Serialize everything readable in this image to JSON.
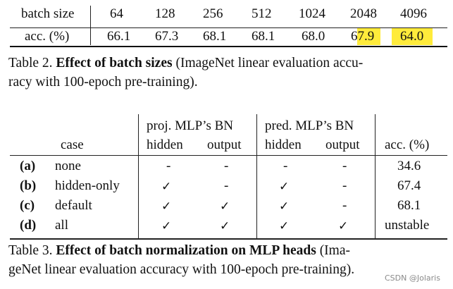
{
  "table2": {
    "row1": {
      "label": "batch size",
      "cells": [
        "64",
        "128",
        "256",
        "512",
        "1024",
        "2048",
        "4096"
      ]
    },
    "row2": {
      "label": "acc. (%)",
      "cells": [
        "66.1",
        "67.3",
        "68.1",
        "68.1",
        "68.0",
        "67.9",
        "64.0"
      ]
    },
    "highlight_color": "#ffeb3b",
    "caption": {
      "prefix": "Table 2. ",
      "bold": "Effect of batch sizes",
      "rest_line1": " (ImageNet linear evaluation accu-",
      "line2": "racy with 100-epoch pre-training)."
    }
  },
  "table3": {
    "group_headers": {
      "proj": "proj. MLP’s BN",
      "pred": "pred. MLP’s BN"
    },
    "col_headers": {
      "case": "case",
      "proj_hidden": "hidden",
      "proj_output": "output",
      "pred_hidden": "hidden",
      "pred_output": "output",
      "acc": "acc. (%)"
    },
    "rows": [
      {
        "id": "(a)",
        "case": "none",
        "proj_hidden": "-",
        "proj_output": "-",
        "pred_hidden": "-",
        "pred_output": "-",
        "acc": "34.6"
      },
      {
        "id": "(b)",
        "case": "hidden-only",
        "proj_hidden": "✓",
        "proj_output": "-",
        "pred_hidden": "✓",
        "pred_output": "-",
        "acc": "67.4"
      },
      {
        "id": "(c)",
        "case": "default",
        "proj_hidden": "✓",
        "proj_output": "✓",
        "pred_hidden": "✓",
        "pred_output": "-",
        "acc": "68.1"
      },
      {
        "id": "(d)",
        "case": "all",
        "proj_hidden": "✓",
        "proj_output": "✓",
        "pred_hidden": "✓",
        "pred_output": "✓",
        "acc": "unstable"
      }
    ],
    "caption": {
      "prefix": "Table 3. ",
      "bold": "Effect of batch normalization on MLP heads",
      "rest_line1": " (Ima-",
      "line2": "geNet linear evaluation accuracy with 100-epoch pre-training)."
    }
  },
  "watermark": "CSDN @Jolaris"
}
